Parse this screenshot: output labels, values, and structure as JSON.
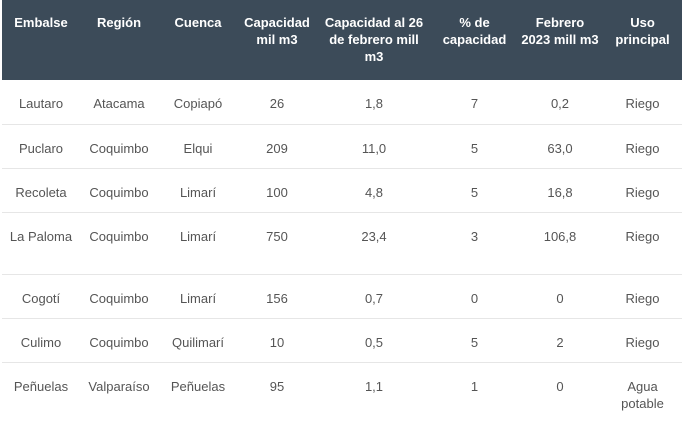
{
  "table": {
    "headers": [
      "Embalse",
      "Región",
      "Cuenca",
      "Capacidad mil m3",
      "Capacidad al 26 de febrero mill m3",
      "% de capacidad",
      "Febrero 2023 mill m3",
      "Uso principal"
    ],
    "rows": [
      [
        "Lautaro",
        "Atacama",
        "Copiapó",
        "26",
        "1,8",
        "7",
        "0,2",
        "Riego"
      ],
      [
        "Puclaro",
        "Coquimbo",
        "Elqui",
        "209",
        "11,0",
        "5",
        "63,0",
        "Riego"
      ],
      [
        "Recoleta",
        "Coquimbo",
        "Limarí",
        "100",
        "4,8",
        "5",
        "16,8",
        "Riego"
      ],
      [
        "La Paloma",
        "Coquimbo",
        "Limarí",
        "750",
        "23,4",
        "3",
        "106,8",
        "Riego"
      ],
      [
        "Cogotí",
        "Coquimbo",
        "Limarí",
        "156",
        "0,7",
        "0",
        "0",
        "Riego"
      ],
      [
        "Culimo",
        "Coquimbo",
        "Quilimarí",
        "10",
        "0,5",
        "5",
        "2",
        "Riego"
      ],
      [
        "Peñuelas",
        "Valparaíso",
        "Peñuelas",
        "95",
        "1,1",
        "1",
        "0",
        "Agua potable"
      ]
    ]
  }
}
